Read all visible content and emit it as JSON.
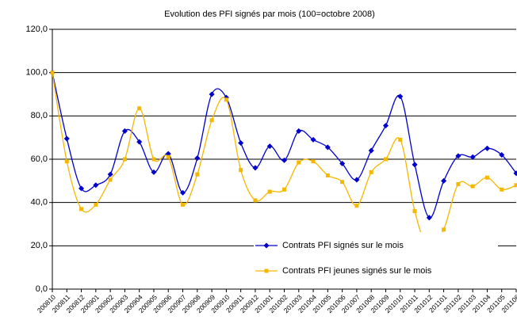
{
  "chart_data": {
    "type": "line",
    "title": "Evolution des PFI signés par mois (100=octobre 2008)",
    "categories": [
      "200810",
      "200811",
      "200812",
      "200901",
      "200902",
      "200903",
      "200904",
      "200905",
      "200906",
      "200907",
      "200908",
      "200909",
      "200910",
      "200911",
      "200912",
      "201001",
      "201002",
      "201003",
      "201004",
      "201005",
      "201006",
      "201007",
      "201008",
      "201009",
      "201010",
      "201011",
      "201012",
      "201101",
      "201102",
      "201103",
      "201104",
      "201105",
      "201106"
    ],
    "series": [
      {
        "name": "Contrats PFI signés sur le mois",
        "color": "#0000cc",
        "marker": "diamond",
        "values": [
          100,
          69.5,
          46.5,
          48,
          53,
          73,
          68,
          54,
          62.5,
          44.5,
          60.5,
          90,
          88.5,
          67.5,
          56,
          66,
          59.5,
          73,
          69,
          65.5,
          58,
          50.5,
          64,
          75.5,
          89,
          57.5,
          33,
          50,
          61.5,
          61,
          65,
          62,
          53.5
        ]
      },
      {
        "name": "Contrats PFI jeunes signés sur le mois",
        "color": "#f5b800",
        "marker": "square",
        "values": [
          100,
          59,
          37,
          39,
          50.5,
          60,
          83.5,
          60,
          61,
          39,
          53,
          78,
          87.5,
          55,
          41,
          45,
          46,
          58.5,
          59,
          52.5,
          49.5,
          38.5,
          54,
          60,
          69,
          36,
          18,
          27.5,
          48.5,
          47.5,
          51.5,
          46,
          48
        ]
      }
    ],
    "ylim": [
      0,
      120
    ],
    "yticks": [
      {
        "value": 0,
        "label": "0,0"
      },
      {
        "value": 20,
        "label": "20,0"
      },
      {
        "value": 40,
        "label": "40,0"
      },
      {
        "value": 60,
        "label": "60,0"
      },
      {
        "value": 80,
        "label": "80,0"
      },
      {
        "value": 100,
        "label": "100,0"
      },
      {
        "value": 120,
        "label": "120,0"
      }
    ],
    "grid": true,
    "smooth": true,
    "legend": "lower right"
  }
}
